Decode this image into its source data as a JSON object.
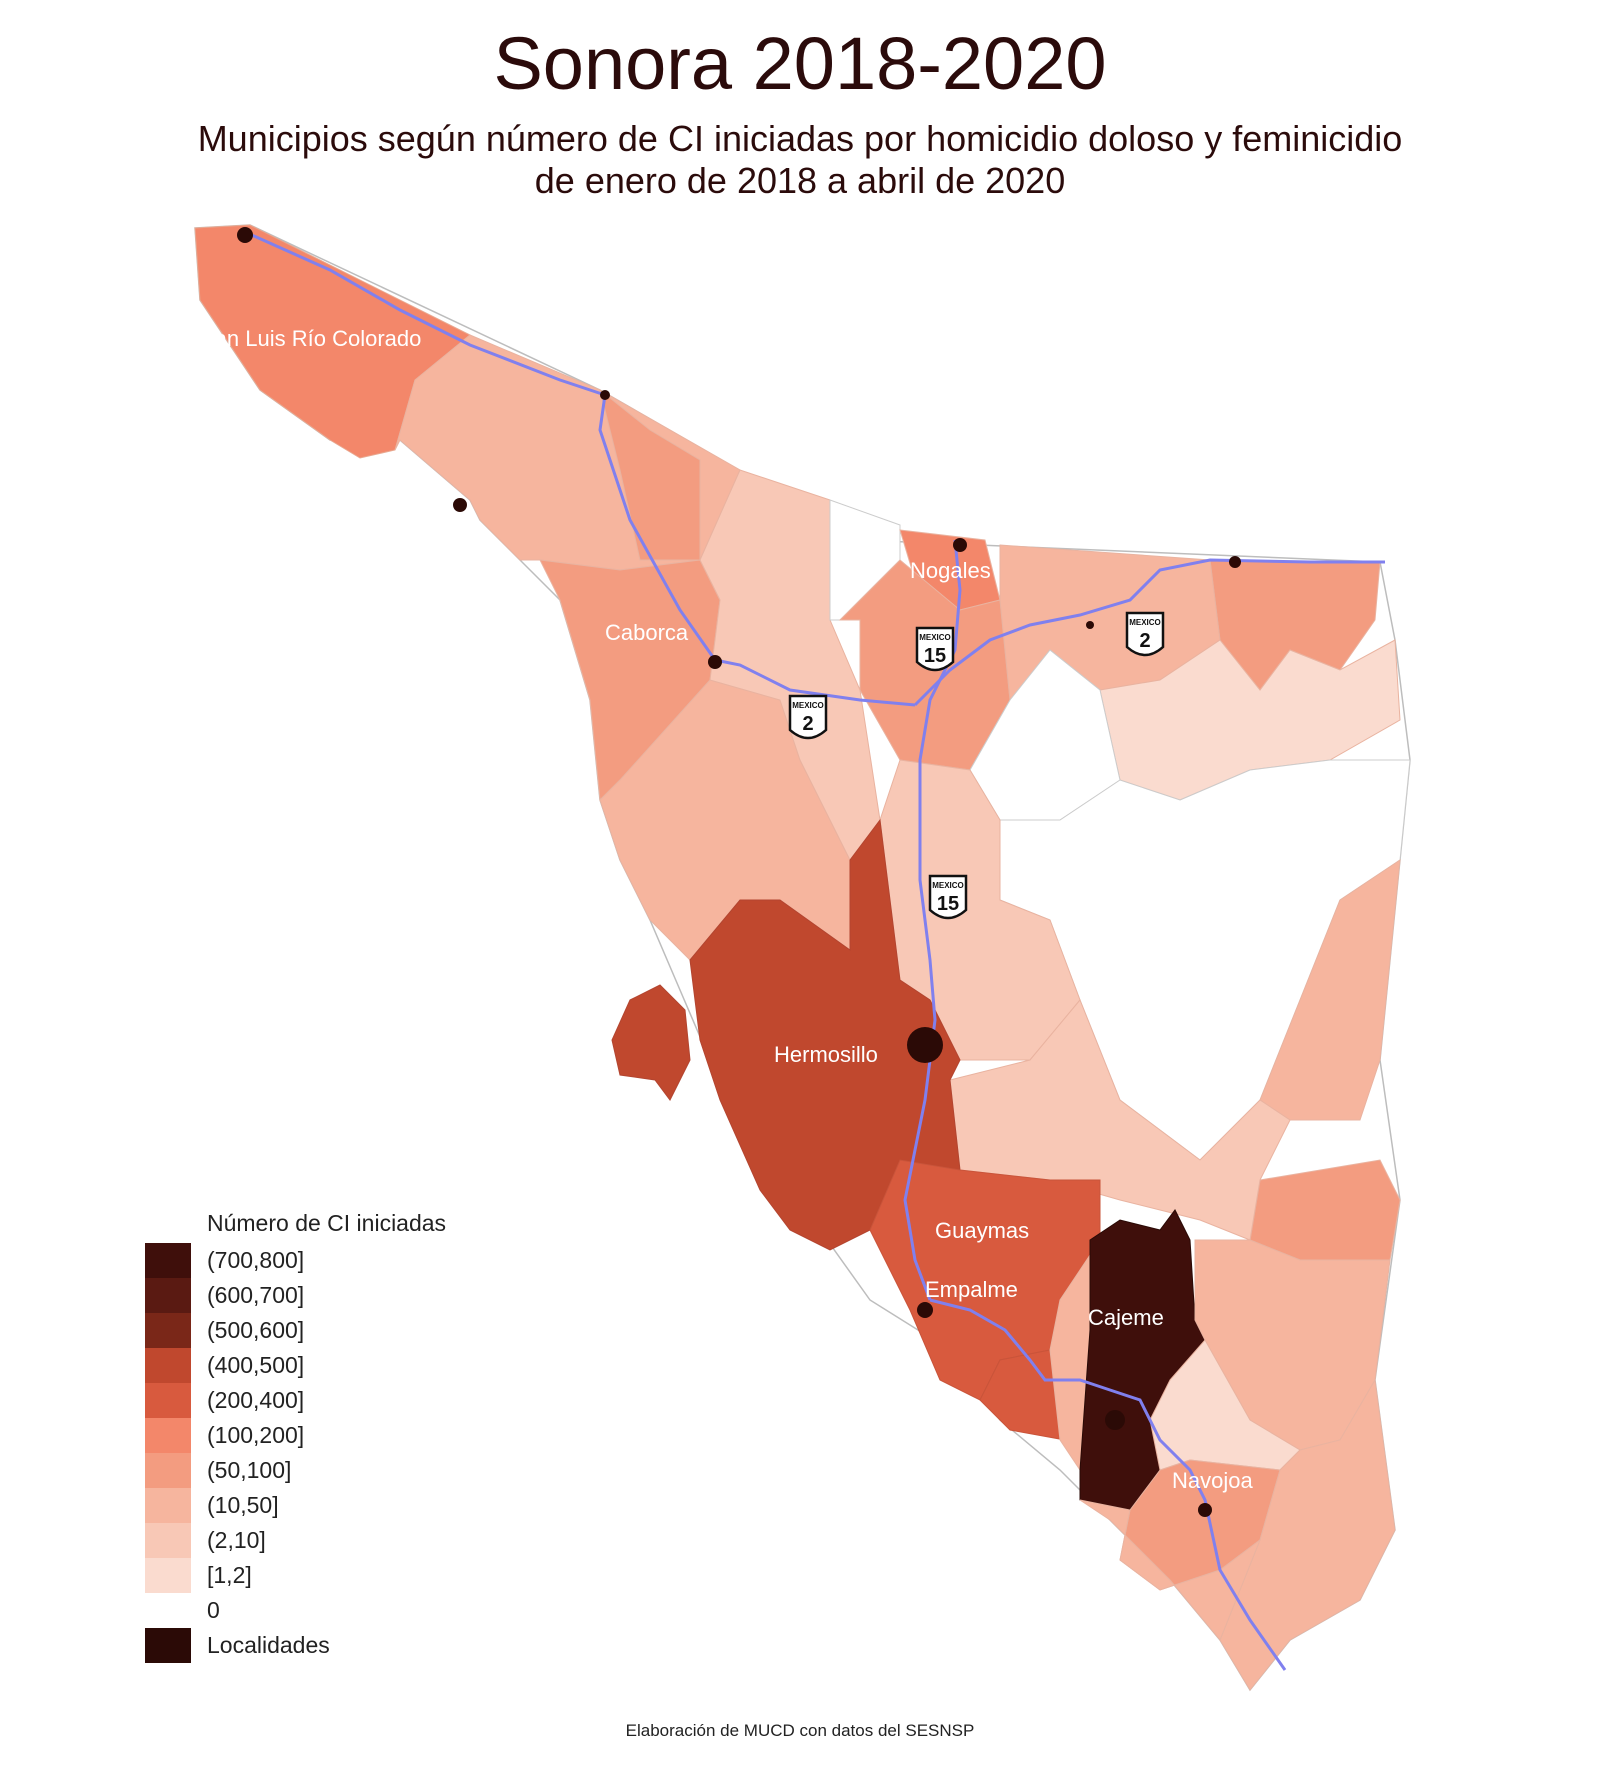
{
  "title": "Sonora 2018-2020",
  "subtitle_line1": "Municipios según número de CI iniciadas por homicidio doloso y feminicidio",
  "subtitle_line2": "de enero de 2018 a abril de 2020",
  "source": "Elaboración de MUCD con datos del SESNSP",
  "legend": {
    "title": "Número de CI iniciadas",
    "items": [
      {
        "label": "(700,800]",
        "color": "#3f0f0b"
      },
      {
        "label": "(600,700]",
        "color": "#5a1a12"
      },
      {
        "label": "(500,600]",
        "color": "#7a2718"
      },
      {
        "label": "(400,500]",
        "color": "#c0482e"
      },
      {
        "label": "(200,400]",
        "color": "#d85a3e"
      },
      {
        "label": "(100,200]",
        "color": "#f3876a"
      },
      {
        "label": "(50,100]",
        "color": "#f39c80"
      },
      {
        "label": "(10,50]",
        "color": "#f6b59e"
      },
      {
        "label": "(2,10]",
        "color": "#f8c8b6"
      },
      {
        "label": "[1,2]",
        "color": "#fadbcf"
      },
      {
        "label": "0",
        "color": "#ffffff"
      },
      {
        "label": "Localidades",
        "color": "#2b0a06"
      }
    ]
  },
  "municipality_labels": [
    {
      "name": "San Luis Río Colorado",
      "category": "(100,200]"
    },
    {
      "name": "Caborca",
      "category": "(50,100]"
    },
    {
      "name": "Nogales",
      "category": "(100,200]"
    },
    {
      "name": "Hermosillo",
      "category": "(400,500]"
    },
    {
      "name": "Guaymas",
      "category": "(200,400]"
    },
    {
      "name": "Empalme",
      "category": "(200,400]"
    },
    {
      "name": "Cajeme",
      "category": "(700,800]"
    },
    {
      "name": "Navojoa",
      "category": "(50,100]"
    }
  ],
  "highway_shields": [
    {
      "label": "MEXICO",
      "number": "15"
    },
    {
      "label": "MEXICO",
      "number": "2"
    },
    {
      "label": "MEXICO",
      "number": "2"
    },
    {
      "label": "MEXICO",
      "number": "15"
    }
  ],
  "highway_color": "#8080ee"
}
